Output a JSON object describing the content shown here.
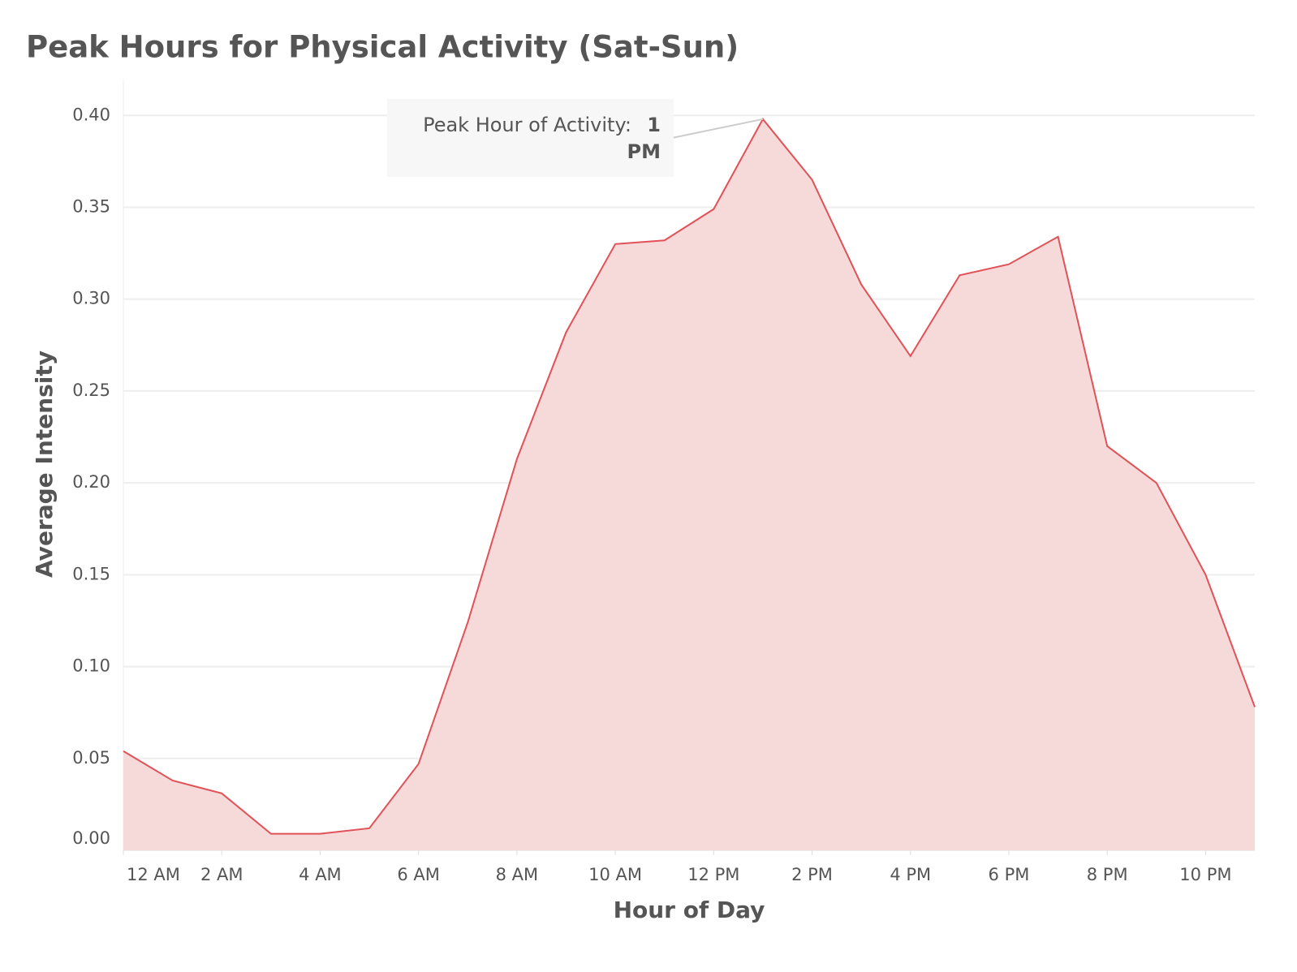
{
  "chart_data": {
    "type": "area",
    "title": "Peak Hours for Physical Activity (Sat-Sun)",
    "x_label": "Hour of Day",
    "y_label": "Average Intensity",
    "x": [
      0,
      1,
      2,
      3,
      4,
      5,
      6,
      7,
      8,
      9,
      10,
      11,
      12,
      13,
      14,
      15,
      16,
      17,
      18,
      19,
      20,
      21,
      22,
      23
    ],
    "series": [
      {
        "color": "#e05257",
        "fill": "#f6d9d9",
        "values": [
          0.054,
          0.038,
          0.031,
          0.009,
          0.009,
          0.012,
          0.047,
          0.124,
          0.213,
          0.282,
          0.33,
          0.332,
          0.349,
          0.398,
          0.365,
          0.308,
          0.269,
          0.313,
          0.319,
          0.334,
          0.22,
          0.2,
          0.15,
          0.078
        ]
      }
    ],
    "xlim": [
      0,
      23
    ],
    "xticks": [
      {
        "value": 0,
        "label": "12 AM"
      },
      {
        "value": 2,
        "label": "2 AM"
      },
      {
        "value": 4,
        "label": "4 AM"
      },
      {
        "value": 6,
        "label": "6 AM"
      },
      {
        "value": 8,
        "label": "8 AM"
      },
      {
        "value": 10,
        "label": "10 AM"
      },
      {
        "value": 12,
        "label": "12 PM"
      },
      {
        "value": 14,
        "label": "2 PM"
      },
      {
        "value": 16,
        "label": "4 PM"
      },
      {
        "value": 18,
        "label": "6 PM"
      },
      {
        "value": 20,
        "label": "8 PM"
      },
      {
        "value": 22,
        "label": "10 PM"
      }
    ],
    "ylim": [
      0,
      0.42
    ],
    "yticks": [
      {
        "value": 0,
        "label": "0.00"
      },
      {
        "value": 0.05,
        "label": "0.05"
      },
      {
        "value": 0.1,
        "label": "0.10"
      },
      {
        "value": 0.15,
        "label": "0.15"
      },
      {
        "value": 0.2,
        "label": "0.20"
      },
      {
        "value": 0.25,
        "label": "0.25"
      },
      {
        "value": 0.3,
        "label": "0.30"
      },
      {
        "value": 0.35,
        "label": "0.35"
      },
      {
        "value": 0.4,
        "label": "0.40"
      }
    ],
    "grid": true,
    "annotation": {
      "text": "Peak Hour of Activity:",
      "value_text": "1 PM",
      "x": 13
    }
  }
}
